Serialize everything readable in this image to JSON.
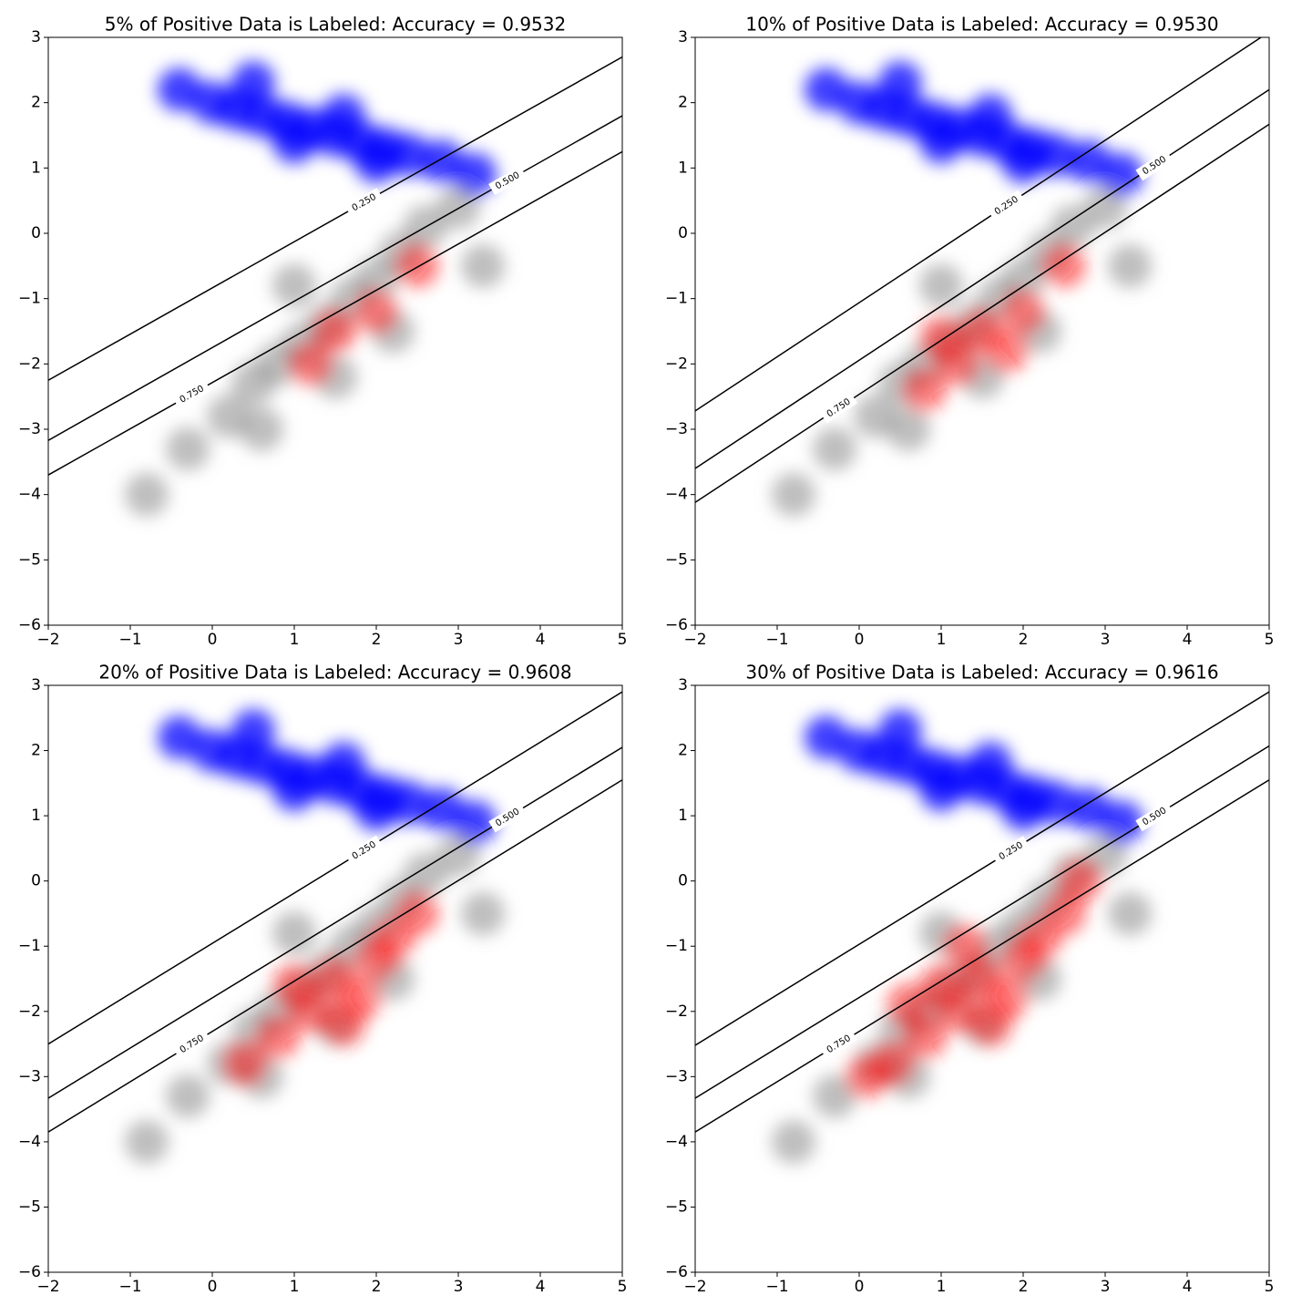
{
  "chart_data": [
    {
      "type": "scatter",
      "title": "5% of Positive Data is Labeled: Accuracy = 0.9532",
      "xlim": [
        -2,
        5
      ],
      "ylim": [
        -6,
        3
      ],
      "xticks": [
        {
          "value": -2,
          "label": "−2"
        },
        {
          "value": -1,
          "label": "−1"
        },
        0,
        1,
        2,
        3,
        4,
        5
      ],
      "yticks": [
        {
          "value": -6,
          "label": "−6"
        },
        {
          "value": -5,
          "label": "−5"
        },
        {
          "value": -4,
          "label": "−4"
        },
        {
          "value": -3,
          "label": "−3"
        },
        {
          "value": -2,
          "label": "−2"
        },
        {
          "value": -1,
          "label": "−1"
        },
        0,
        1,
        2,
        3
      ],
      "series": [
        {
          "color": "#0000ff",
          "x": [
            -0.4,
            0,
            0.3,
            0.6,
            0.9,
            1.2,
            1.5,
            1.8,
            2.1,
            2.4,
            2.8,
            0.5,
            1.0,
            1.6,
            2.0,
            3.2
          ],
          "y": [
            2.2,
            2.0,
            1.9,
            1.8,
            1.7,
            1.6,
            1.5,
            1.4,
            1.3,
            1.2,
            1.1,
            2.3,
            1.4,
            1.8,
            1.1,
            0.9
          ]
        },
        {
          "color": "#808080",
          "x": [
            -0.3,
            0.2,
            0.5,
            0.8,
            1.1,
            1.4,
            1.7,
            2.0,
            2.3,
            2.6,
            3.0,
            0.6,
            1.5,
            2.2,
            1.0,
            3.3,
            -0.8
          ],
          "y": [
            -3.3,
            -2.8,
            -2.3,
            -2.0,
            -1.7,
            -1.4,
            -1.0,
            -0.7,
            -0.3,
            0.1,
            0.4,
            -3.0,
            -2.2,
            -1.5,
            -0.8,
            -0.5,
            -4.0
          ]
        },
        {
          "color": "#ff0000",
          "x": [
            1.5,
            2.0,
            1.2,
            2.5
          ],
          "y": [
            -1.5,
            -1.2,
            -2.0,
            -0.5
          ]
        }
      ],
      "contours": [
        {
          "label": "0.250",
          "x": [
            -2,
            5
          ],
          "y": [
            -2.25,
            2.7
          ]
        },
        {
          "label": "0.500",
          "x": [
            -2,
            5
          ],
          "y": [
            -3.17,
            1.8
          ]
        },
        {
          "label": "0.750",
          "x": [
            -2,
            5
          ],
          "y": [
            -3.7,
            1.25
          ]
        }
      ]
    },
    {
      "type": "scatter",
      "title": "10% of Positive Data is Labeled: Accuracy = 0.9530",
      "xlim": [
        -2,
        5
      ],
      "ylim": [
        -6,
        3
      ],
      "xticks": [
        {
          "value": -2,
          "label": "−2"
        },
        {
          "value": -1,
          "label": "−1"
        },
        0,
        1,
        2,
        3,
        4,
        5
      ],
      "yticks": [
        {
          "value": -6,
          "label": "−6"
        },
        {
          "value": -5,
          "label": "−5"
        },
        {
          "value": -4,
          "label": "−4"
        },
        {
          "value": -3,
          "label": "−3"
        },
        {
          "value": -2,
          "label": "−2"
        },
        {
          "value": -1,
          "label": "−1"
        },
        0,
        1,
        2,
        3
      ],
      "series": [
        {
          "color": "#0000ff",
          "x": [
            -0.4,
            0,
            0.3,
            0.6,
            0.9,
            1.2,
            1.5,
            1.8,
            2.1,
            2.4,
            2.8,
            0.5,
            1.0,
            1.6,
            2.0,
            3.2
          ],
          "y": [
            2.2,
            2.0,
            1.9,
            1.8,
            1.7,
            1.6,
            1.5,
            1.4,
            1.3,
            1.2,
            1.1,
            2.3,
            1.4,
            1.8,
            1.1,
            0.9
          ]
        },
        {
          "color": "#808080",
          "x": [
            -0.3,
            0.2,
            0.5,
            0.8,
            1.1,
            1.4,
            1.7,
            2.0,
            2.3,
            2.6,
            3.0,
            0.6,
            1.5,
            2.2,
            1.0,
            3.3,
            -0.8
          ],
          "y": [
            -3.3,
            -2.8,
            -2.3,
            -2.0,
            -1.7,
            -1.4,
            -1.0,
            -0.7,
            -0.3,
            0.1,
            0.4,
            -3.0,
            -2.2,
            -1.5,
            -0.8,
            -0.5,
            -4.0
          ]
        },
        {
          "color": "#ff0000",
          "x": [
            1.5,
            2.0,
            1.2,
            2.5,
            0.8,
            1.8,
            1.0
          ],
          "y": [
            -1.5,
            -1.2,
            -2.0,
            -0.5,
            -2.4,
            -1.8,
            -1.6
          ]
        }
      ],
      "contours": [
        {
          "label": "0.250",
          "x": [
            -2,
            4.9
          ],
          "y": [
            -2.72,
            3
          ]
        },
        {
          "label": "0.500",
          "x": [
            -2,
            5
          ],
          "y": [
            -3.6,
            2.2
          ]
        },
        {
          "label": "0.750",
          "x": [
            -2,
            5
          ],
          "y": [
            -4.12,
            1.67
          ]
        }
      ]
    },
    {
      "type": "scatter",
      "title": "20% of Positive Data is Labeled: Accuracy = 0.9608",
      "xlim": [
        -2,
        5
      ],
      "ylim": [
        -6,
        3
      ],
      "xticks": [
        {
          "value": -2,
          "label": "−2"
        },
        {
          "value": -1,
          "label": "−1"
        },
        0,
        1,
        2,
        3,
        4,
        5
      ],
      "yticks": [
        {
          "value": -6,
          "label": "−6"
        },
        {
          "value": -5,
          "label": "−5"
        },
        {
          "value": -4,
          "label": "−4"
        },
        {
          "value": -3,
          "label": "−3"
        },
        {
          "value": -2,
          "label": "−2"
        },
        {
          "value": -1,
          "label": "−1"
        },
        0,
        1,
        2,
        3
      ],
      "series": [
        {
          "color": "#0000ff",
          "x": [
            -0.4,
            0,
            0.3,
            0.6,
            0.9,
            1.2,
            1.5,
            1.8,
            2.1,
            2.4,
            2.8,
            0.5,
            1.0,
            1.6,
            2.0,
            3.2
          ],
          "y": [
            2.2,
            2.0,
            1.9,
            1.8,
            1.7,
            1.6,
            1.5,
            1.4,
            1.3,
            1.2,
            1.1,
            2.3,
            1.4,
            1.8,
            1.1,
            0.9
          ]
        },
        {
          "color": "#808080",
          "x": [
            -0.3,
            0.2,
            0.5,
            0.8,
            1.1,
            1.4,
            1.7,
            2.0,
            2.3,
            2.6,
            3.0,
            0.6,
            1.5,
            2.2,
            1.0,
            3.3,
            -0.8
          ],
          "y": [
            -3.3,
            -2.8,
            -2.3,
            -2.0,
            -1.7,
            -1.4,
            -1.0,
            -0.7,
            -0.3,
            0.1,
            0.4,
            -3.0,
            -2.2,
            -1.5,
            -0.8,
            -0.5,
            -4.0
          ]
        },
        {
          "color": "#ff0000",
          "x": [
            1.5,
            2.0,
            1.2,
            2.5,
            0.8,
            1.8,
            1.0,
            0.4,
            2.2,
            1.6
          ],
          "y": [
            -1.5,
            -1.2,
            -2.0,
            -0.5,
            -2.4,
            -1.8,
            -1.6,
            -2.8,
            -0.9,
            -2.2
          ]
        }
      ],
      "contours": [
        {
          "label": "0.250",
          "x": [
            -2,
            5
          ],
          "y": [
            -2.5,
            2.9
          ]
        },
        {
          "label": "0.500",
          "x": [
            -2,
            5
          ],
          "y": [
            -3.33,
            2.05
          ]
        },
        {
          "label": "0.750",
          "x": [
            -2,
            5
          ],
          "y": [
            -3.85,
            1.55
          ]
        }
      ]
    },
    {
      "type": "scatter",
      "title": "30% of Positive Data is Labeled: Accuracy = 0.9616",
      "xlim": [
        -2,
        5
      ],
      "ylim": [
        -6,
        3
      ],
      "xticks": [
        {
          "value": -2,
          "label": "−2"
        },
        {
          "value": -1,
          "label": "−1"
        },
        0,
        1,
        2,
        3,
        4,
        5
      ],
      "yticks": [
        {
          "value": -6,
          "label": "−6"
        },
        {
          "value": -5,
          "label": "−5"
        },
        {
          "value": -4,
          "label": "−4"
        },
        {
          "value": -3,
          "label": "−3"
        },
        {
          "value": -2,
          "label": "−2"
        },
        {
          "value": -1,
          "label": "−1"
        },
        0,
        1,
        2,
        3
      ],
      "series": [
        {
          "color": "#0000ff",
          "x": [
            -0.4,
            0,
            0.3,
            0.6,
            0.9,
            1.2,
            1.5,
            1.8,
            2.1,
            2.4,
            2.8,
            0.5,
            1.0,
            1.6,
            2.0,
            3.2
          ],
          "y": [
            2.2,
            2.0,
            1.9,
            1.8,
            1.7,
            1.6,
            1.5,
            1.4,
            1.3,
            1.2,
            1.1,
            2.3,
            1.4,
            1.8,
            1.1,
            0.9
          ]
        },
        {
          "color": "#808080",
          "x": [
            -0.3,
            0.2,
            0.5,
            0.8,
            1.1,
            1.4,
            1.7,
            2.0,
            2.3,
            2.6,
            3.0,
            0.6,
            1.5,
            2.2,
            1.0,
            3.3,
            -0.8
          ],
          "y": [
            -3.3,
            -2.8,
            -2.3,
            -2.0,
            -1.7,
            -1.4,
            -1.0,
            -0.7,
            -0.3,
            0.1,
            0.4,
            -3.0,
            -2.2,
            -1.5,
            -0.8,
            -0.5,
            -4.0
          ]
        },
        {
          "color": "#ff0000",
          "x": [
            1.5,
            2.0,
            1.2,
            2.5,
            0.8,
            1.8,
            1.0,
            0.4,
            2.2,
            1.6,
            0.6,
            1.3,
            2.7,
            0.1
          ],
          "y": [
            -1.5,
            -1.2,
            -2.0,
            -0.5,
            -2.4,
            -1.8,
            -1.6,
            -2.8,
            -0.9,
            -2.2,
            -1.9,
            -1.0,
            0,
            -3.0
          ]
        }
      ],
      "contours": [
        {
          "label": "0.250",
          "x": [
            -2,
            5
          ],
          "y": [
            -2.52,
            2.9
          ]
        },
        {
          "label": "0.500",
          "x": [
            -2,
            5
          ],
          "y": [
            -3.33,
            2.07
          ]
        },
        {
          "label": "0.750",
          "x": [
            -2,
            5
          ],
          "y": [
            -3.85,
            1.55
          ]
        }
      ]
    }
  ]
}
